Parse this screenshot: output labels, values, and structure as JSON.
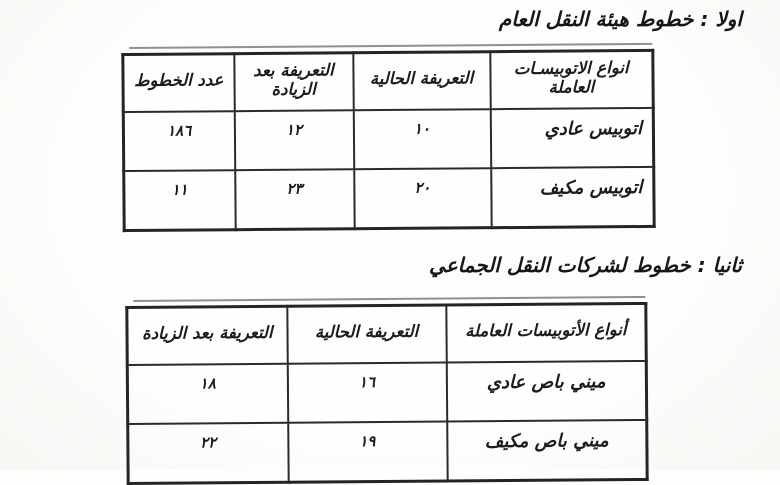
{
  "section1": {
    "heading": "اولا : خطوط هيئة النقل العام",
    "table": {
      "headers": {
        "types": "انواع الاتوبيسـات العاملة",
        "current_tariff": "التعريفة الحالية",
        "tariff_after_increase": "التعريفة بعد الزيادة",
        "line_count": "عدد الخطوط"
      },
      "rows": [
        {
          "type": "اتوبيس عادي",
          "current": "١٠",
          "after": "١٢",
          "lines": "١٨٦"
        },
        {
          "type": "اتوبيس مكيف",
          "current": "٢٠",
          "after": "٢٣",
          "lines": "١١"
        }
      ]
    }
  },
  "section2": {
    "heading": "ثانيا : خطوط لشركات النقل الجماعي",
    "table": {
      "headers": {
        "types": "أنواع الأتوبيسات العاملة",
        "current_tariff": "التعريفة الحالية",
        "tariff_after_increase": "التعريفة بعد الزيادة"
      },
      "rows": [
        {
          "type": "ميني باص عادي",
          "current": "١٦",
          "after": "١٨"
        },
        {
          "type": "ميني باص مكيف",
          "current": "١٩",
          "after": "٢٢"
        }
      ]
    }
  }
}
